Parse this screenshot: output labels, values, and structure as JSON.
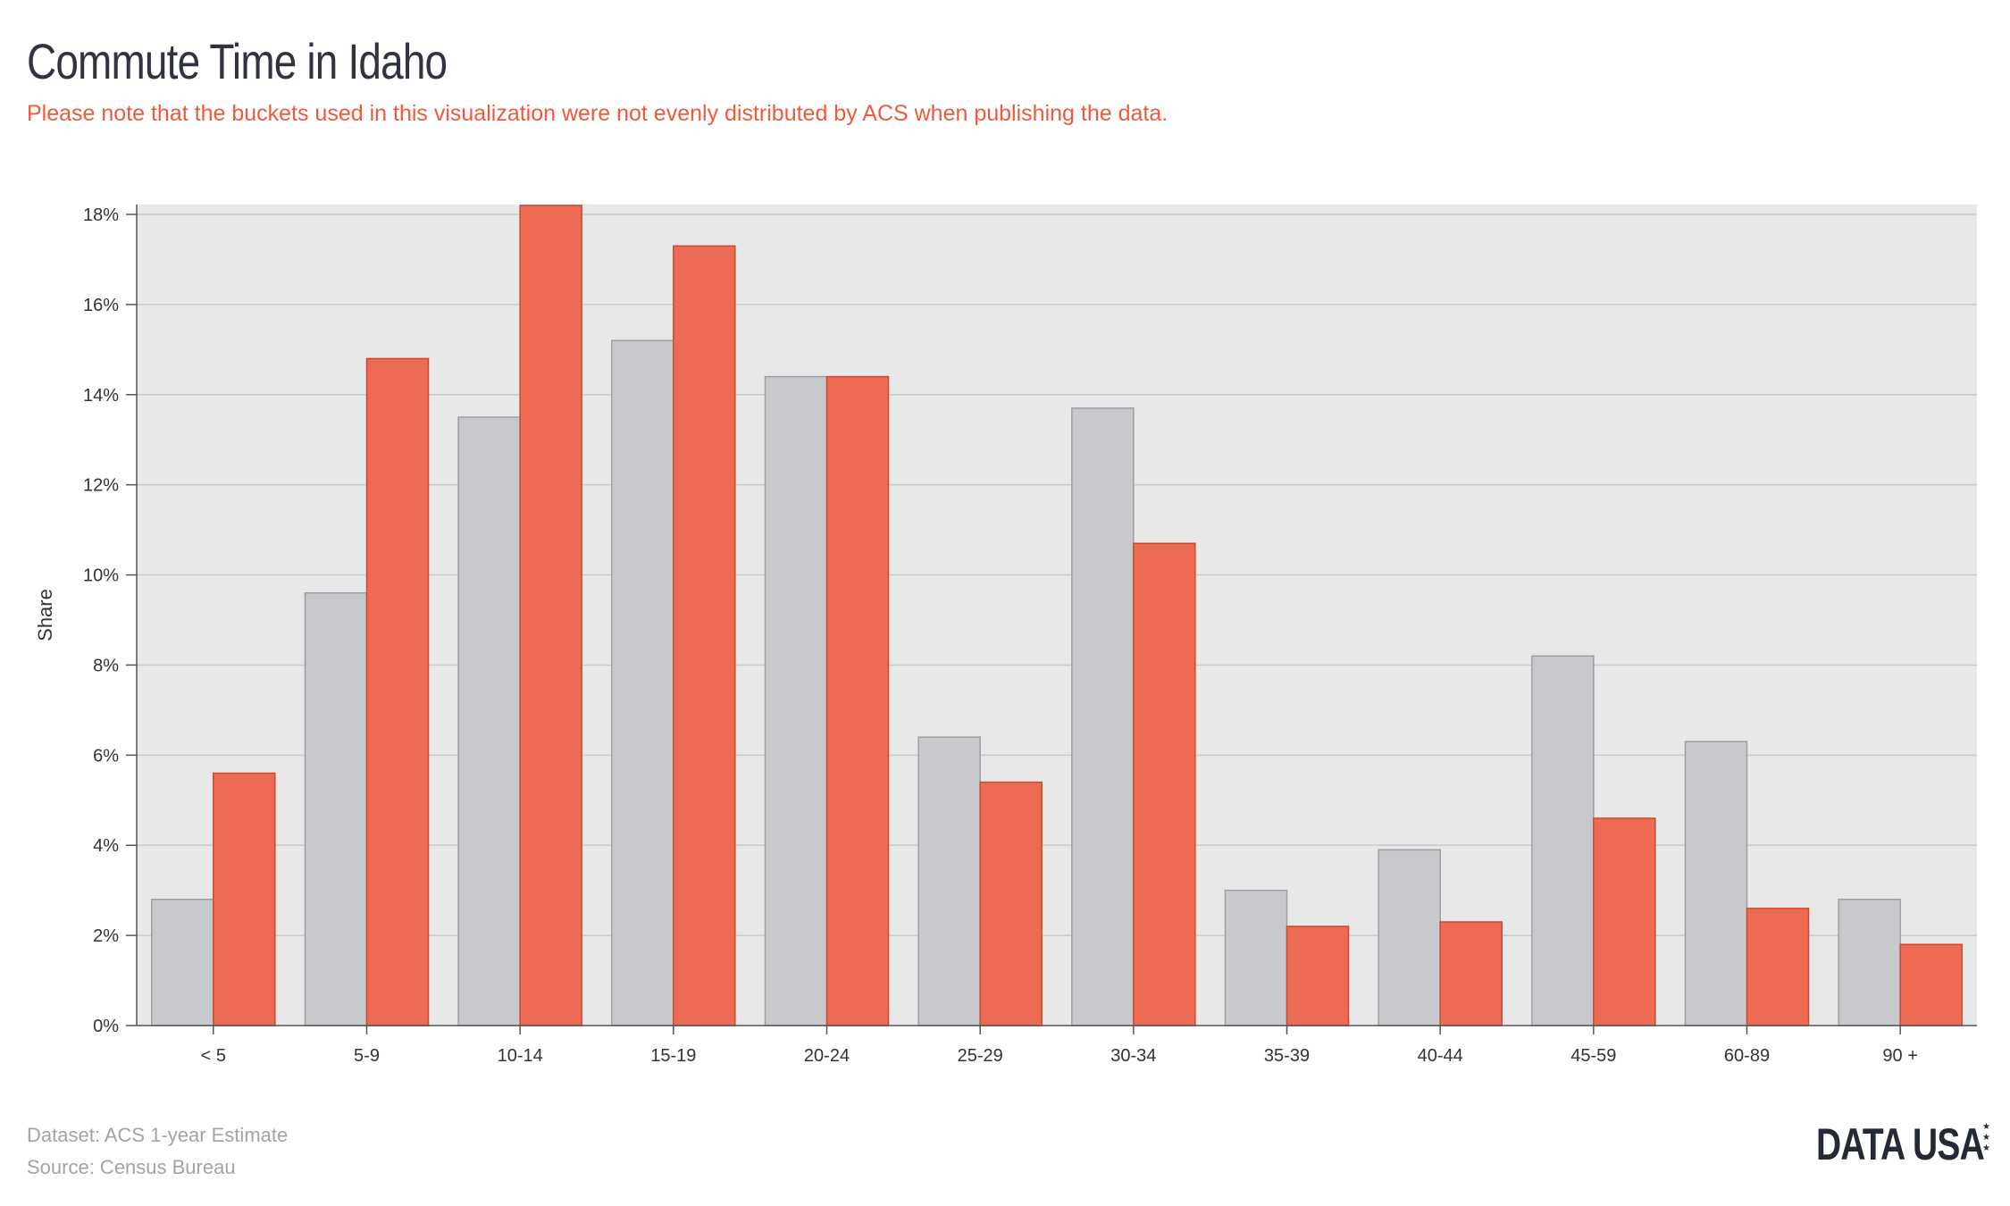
{
  "header": {
    "title": "Commute Time in Idaho",
    "subtitle": "Please note that the buckets used in this visualization were not evenly distributed by ACS when publishing the data."
  },
  "footer": {
    "dataset": "Dataset: ACS 1-year Estimate",
    "source": "Source: Census Bureau",
    "logo_text": "DATA USA",
    "logo_icon": "star-icon"
  },
  "colors": {
    "series_gray": "#c8c9cd",
    "series_red": "#ee6b53",
    "plot_bg": "#e8e8e8",
    "title": "#2f3440",
    "subtitle": "#ef5a3a"
  },
  "chart_data": {
    "type": "bar",
    "ylabel": "Share",
    "xlabel": "",
    "ylim": [
      0,
      18
    ],
    "yticks": [
      0,
      2,
      4,
      6,
      8,
      10,
      12,
      14,
      16,
      18
    ],
    "ytick_labels": [
      "0%",
      "2%",
      "4%",
      "6%",
      "8%",
      "10%",
      "12%",
      "14%",
      "16%",
      "18%"
    ],
    "grid": true,
    "legend": "none",
    "categories": [
      "< 5",
      "5-9",
      "10-14",
      "15-19",
      "20-24",
      "25-29",
      "30-34",
      "35-39",
      "40-44",
      "45-59",
      "60-89",
      "90 +"
    ],
    "series": [
      {
        "color": "#c8c9cd",
        "values": [
          2.8,
          9.6,
          13.5,
          15.2,
          14.4,
          6.4,
          13.7,
          3.0,
          3.9,
          8.2,
          6.3,
          2.8
        ]
      },
      {
        "color": "#ee6b53",
        "values": [
          5.6,
          14.8,
          18.2,
          17.3,
          14.4,
          5.4,
          10.7,
          2.2,
          2.3,
          4.6,
          2.6,
          1.8
        ]
      }
    ]
  }
}
